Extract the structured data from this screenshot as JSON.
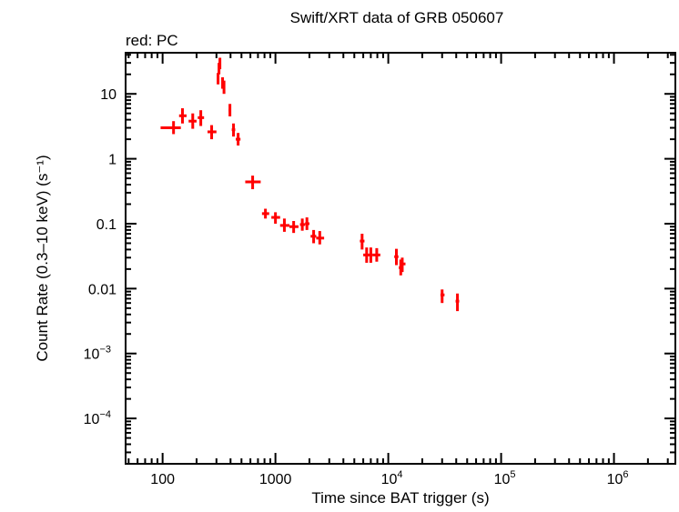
{
  "chart_data": {
    "type": "scatter",
    "title": "Swift/XRT data of GRB 050607",
    "annotation": "red: PC",
    "xlabel": "Time since BAT trigger (s)",
    "ylabel": "Count Rate (0.3–10 keV) (s⁻¹)",
    "xscale": "log",
    "yscale": "log",
    "xlim": [
      47,
      3500000
    ],
    "ylim": [
      2e-05,
      43
    ],
    "grid": false,
    "series_color": "#ff0000",
    "x_ticks": [
      {
        "value": 100,
        "base": "100",
        "exp": ""
      },
      {
        "value": 1000,
        "base": "1000",
        "exp": ""
      },
      {
        "value": 10000,
        "base": "10",
        "exp": "4"
      },
      {
        "value": 100000,
        "base": "10",
        "exp": "5"
      },
      {
        "value": 1000000,
        "base": "10",
        "exp": "6"
      }
    ],
    "y_ticks": [
      {
        "value": 10,
        "base": "10",
        "exp": ""
      },
      {
        "value": 1,
        "base": "1",
        "exp": ""
      },
      {
        "value": 0.1,
        "base": "0.1",
        "exp": ""
      },
      {
        "value": 0.01,
        "base": "0.01",
        "exp": ""
      },
      {
        "value": 0.001,
        "base": "10",
        "exp": "−3"
      },
      {
        "value": 0.0001,
        "base": "10",
        "exp": "−4"
      }
    ],
    "columns": [
      "time",
      "time_low",
      "time_high",
      "rate",
      "rate_low",
      "rate_high"
    ],
    "points": [
      [
        125,
        96,
        145,
        3.0,
        2.4,
        3.8
      ],
      [
        150,
        140,
        163,
        4.6,
        3.5,
        6.0
      ],
      [
        185,
        170,
        200,
        3.8,
        2.9,
        5.0
      ],
      [
        218,
        205,
        233,
        4.3,
        3.2,
        5.6
      ],
      [
        272,
        250,
        300,
        2.6,
        2.0,
        3.3
      ],
      [
        310,
        303,
        317,
        17,
        14,
        21
      ],
      [
        316,
        311,
        321,
        24,
        20,
        30
      ],
      [
        322,
        318,
        327,
        30,
        24,
        36
      ],
      [
        340,
        333,
        347,
        15,
        12,
        18
      ],
      [
        350,
        344,
        357,
        13,
        10,
        16
      ],
      [
        395,
        385,
        405,
        5.6,
        4.5,
        7.0
      ],
      [
        425,
        410,
        440,
        2.8,
        2.2,
        3.5
      ],
      [
        467,
        445,
        490,
        2.0,
        1.6,
        2.5
      ],
      [
        628,
        540,
        740,
        0.44,
        0.34,
        0.55
      ],
      [
        815,
        760,
        880,
        0.143,
        0.12,
        0.17
      ],
      [
        1000,
        920,
        1100,
        0.125,
        0.1,
        0.15
      ],
      [
        1200,
        1100,
        1330,
        0.094,
        0.075,
        0.12
      ],
      [
        1450,
        1330,
        1600,
        0.09,
        0.072,
        0.11
      ],
      [
        1730,
        1650,
        1830,
        0.097,
        0.078,
        0.12
      ],
      [
        1900,
        1830,
        2000,
        0.1,
        0.08,
        0.125
      ],
      [
        2180,
        2050,
        2300,
        0.064,
        0.05,
        0.08
      ],
      [
        2470,
        2300,
        2700,
        0.06,
        0.048,
        0.077
      ],
      [
        5860,
        5600,
        6150,
        0.054,
        0.04,
        0.07
      ],
      [
        6430,
        6000,
        6900,
        0.033,
        0.025,
        0.043
      ],
      [
        7000,
        6800,
        7300,
        0.033,
        0.025,
        0.043
      ],
      [
        7900,
        7300,
        8500,
        0.033,
        0.026,
        0.042
      ],
      [
        11800,
        11300,
        12300,
        0.031,
        0.023,
        0.041
      ],
      [
        12900,
        12400,
        13400,
        0.021,
        0.016,
        0.028
      ],
      [
        13300,
        12900,
        14200,
        0.024,
        0.018,
        0.03
      ],
      [
        30000,
        29000,
        31500,
        0.008,
        0.006,
        0.0097
      ],
      [
        41000,
        39500,
        42500,
        0.0064,
        0.0045,
        0.0084
      ]
    ]
  }
}
